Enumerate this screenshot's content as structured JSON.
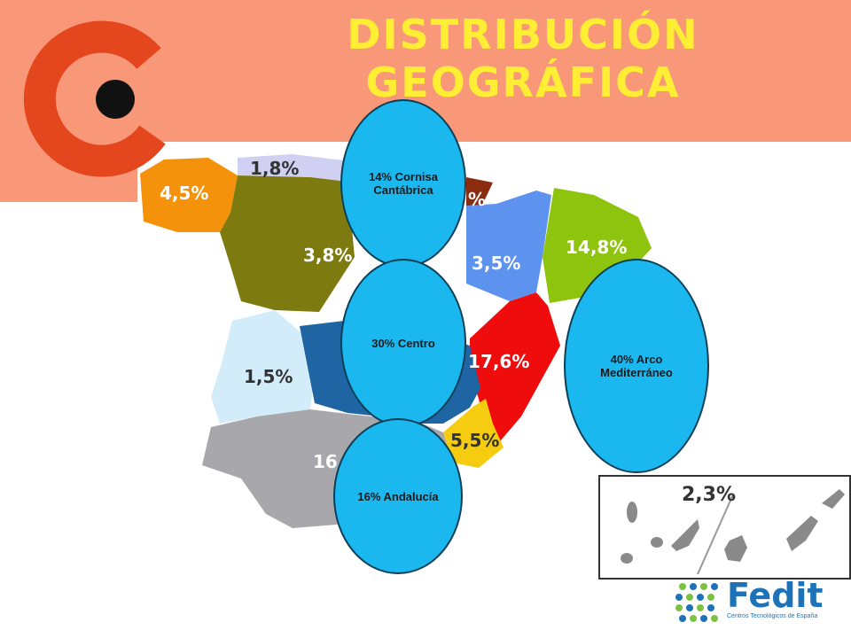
{
  "title": {
    "line1": "DISTRIBUCIÓN",
    "line2": "GEOGRÁFICA"
  },
  "colors": {
    "header_band": "#f99878",
    "logo_ring": "#e4461e",
    "title": "#ffee33",
    "bubble": "#1bb8ef",
    "fedit_blue": "#1e73b8",
    "fedit_green": "#7ec242"
  },
  "regions": [
    {
      "name": "galicia",
      "label": "4,5%",
      "color": "#f5920c"
    },
    {
      "name": "asturias",
      "label": "1,8%",
      "color": "#cfd0f2"
    },
    {
      "name": "castilla-leon",
      "label": "3,8%",
      "color": "#7d7b10"
    },
    {
      "name": "aragon",
      "label": "3,5%",
      "color": "#5d93ee"
    },
    {
      "name": "cataluna",
      "label": "14,8%",
      "color": "#8ec40e"
    },
    {
      "name": "valencia",
      "label": "17,6%",
      "color": "#ee0c0c"
    },
    {
      "name": "murcia",
      "label": "5,5%",
      "color": "#f5cc10"
    },
    {
      "name": "extremadura",
      "label": "1,5%",
      "color": "#d2ecfa"
    },
    {
      "name": "andalucia",
      "label": "16",
      "color": "#a8a7ab"
    },
    {
      "name": "castilla-la-mancha",
      "label": "",
      "color": "#1f64a3"
    },
    {
      "name": "navarra",
      "label": "%",
      "color": "#8b2c10"
    }
  ],
  "bubbles": {
    "cantabrica": "14% Cornisa Cantábrica",
    "centro": "30% Centro",
    "andalucia": "16% Andalucía",
    "mediterraneo": "40% Arco Mediterráneo"
  },
  "canarias": {
    "label": "2,3%",
    "color": "#8a8a8a"
  },
  "logo": {
    "name": "Fedit",
    "subtitle": "Centros Tecnológicos de España"
  }
}
